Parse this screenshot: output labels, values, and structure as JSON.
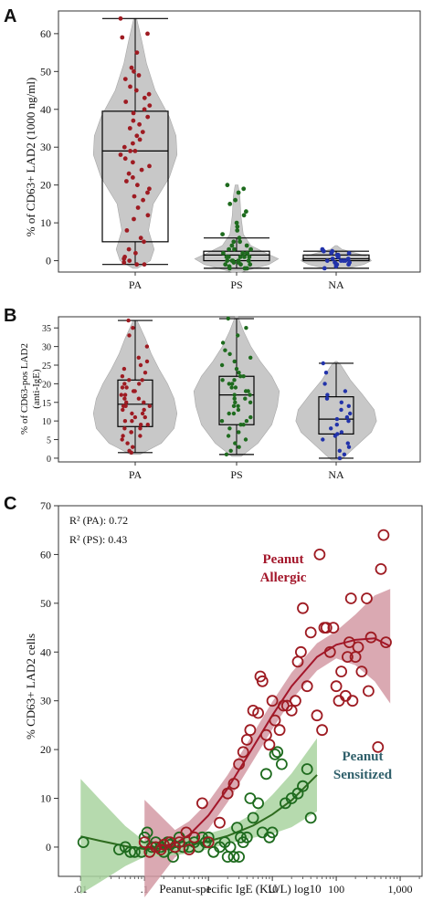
{
  "colors": {
    "violin_fill": "#c8c8c8",
    "box_stroke": "#000000",
    "pa": "#9e1b22",
    "ps": "#1e6b1e",
    "na": "#2233aa",
    "pa_fit": "#a3162a",
    "ps_fit": "#2e6b1e",
    "pa_band": "#d49aa5",
    "ps_band": "#a9d3a0",
    "ps_label": "#2f5f6a"
  },
  "chart_data": [
    {
      "panel": "A",
      "type": "violin",
      "ylabel": "% of CD63+ LAD2 (1000 ng/ml)",
      "yticks": [
        0,
        10,
        20,
        30,
        40,
        50,
        60
      ],
      "ylim": [
        -3,
        66
      ],
      "categories": [
        "PA",
        "PS",
        "NA"
      ],
      "boxes": [
        {
          "min": -1,
          "q1": 5,
          "median": 29,
          "q3": 39.5,
          "max": 64
        },
        {
          "min": -2,
          "q1": 0,
          "median": 1.5,
          "q3": 2.5,
          "max": 6
        },
        {
          "min": -2,
          "q1": 0,
          "median": 0.5,
          "q3": 1.5,
          "max": 2.5
        }
      ],
      "violin_widths": [
        [
          [
            -2,
            0.05
          ],
          [
            0,
            0.32
          ],
          [
            3,
            0.4
          ],
          [
            8,
            0.28
          ],
          [
            15,
            0.38
          ],
          [
            22,
            0.72
          ],
          [
            28,
            0.88
          ],
          [
            33,
            0.86
          ],
          [
            38,
            0.72
          ],
          [
            45,
            0.42
          ],
          [
            52,
            0.24
          ],
          [
            58,
            0.14
          ],
          [
            64,
            0.03
          ]
        ],
        [
          [
            -3,
            0.1
          ],
          [
            -1,
            0.68
          ],
          [
            0.5,
            0.88
          ],
          [
            2,
            0.62
          ],
          [
            4,
            0.3
          ],
          [
            7,
            0.14
          ],
          [
            12,
            0.09
          ],
          [
            17,
            0.07
          ],
          [
            20,
            0.03
          ]
        ],
        [
          [
            -2,
            0.24
          ],
          [
            -1,
            0.58
          ],
          [
            0,
            0.74
          ],
          [
            1,
            0.68
          ],
          [
            2,
            0.42
          ],
          [
            3,
            0.12
          ],
          [
            4,
            0.02
          ]
        ]
      ],
      "points": [
        [
          64,
          60,
          59,
          55,
          51,
          50,
          49,
          48,
          46,
          45,
          44,
          43,
          42,
          41,
          40,
          39,
          38,
          37,
          36,
          35,
          34,
          33,
          32,
          31,
          30,
          29,
          29,
          28,
          27,
          26,
          25,
          24,
          23,
          22,
          21,
          20,
          19,
          18,
          17,
          16,
          14,
          12,
          11,
          8,
          6,
          5,
          3,
          2,
          1,
          0.5,
          0,
          -0.5,
          -1,
          -1
        ],
        [
          20,
          19,
          18,
          16,
          15,
          13,
          12,
          10,
          9,
          8,
          7,
          6,
          5,
          5,
          4,
          4,
          3,
          3,
          3,
          2,
          2,
          2,
          2,
          1,
          1,
          1,
          1,
          1,
          0,
          0,
          0,
          0,
          0,
          -0.5,
          -0.5,
          -1,
          -1,
          -1,
          -1.5,
          -2,
          -2,
          -2
        ],
        [
          3,
          2.5,
          2.5,
          2,
          2,
          1.5,
          1.5,
          1,
          1,
          1,
          0.5,
          0.5,
          0,
          0,
          0,
          0,
          -0.5,
          -0.5,
          -1,
          -1,
          -1,
          -1.5,
          -2
        ]
      ]
    },
    {
      "panel": "B",
      "type": "violin",
      "ylabel": "% of CD63-pos LAD2 (anti-IgE)",
      "yticks": [
        0,
        5,
        10,
        15,
        20,
        25,
        30,
        35
      ],
      "ylim": [
        -1,
        38
      ],
      "categories": [
        "PA",
        "PS",
        "NA"
      ],
      "boxes": [
        {
          "min": 1.5,
          "q1": 8.5,
          "median": 14.5,
          "q3": 21,
          "max": 37
        },
        {
          "min": 1,
          "q1": 9,
          "median": 17,
          "q3": 22,
          "max": 37.5
        },
        {
          "min": 0,
          "q1": 6.5,
          "median": 10.5,
          "q3": 16.5,
          "max": 25.5
        }
      ],
      "violin_widths": [
        [
          [
            1,
            0.1
          ],
          [
            4,
            0.55
          ],
          [
            8,
            0.82
          ],
          [
            12,
            0.88
          ],
          [
            16,
            0.82
          ],
          [
            20,
            0.68
          ],
          [
            24,
            0.5
          ],
          [
            28,
            0.34
          ],
          [
            32,
            0.22
          ],
          [
            37,
            0.04
          ]
        ],
        [
          [
            0.5,
            0.1
          ],
          [
            4,
            0.45
          ],
          [
            9,
            0.74
          ],
          [
            14,
            0.86
          ],
          [
            18,
            0.9
          ],
          [
            22,
            0.74
          ],
          [
            26,
            0.5
          ],
          [
            30,
            0.3
          ],
          [
            34,
            0.15
          ],
          [
            38,
            0.03
          ]
        ],
        [
          [
            -0.5,
            0.1
          ],
          [
            3,
            0.4
          ],
          [
            7,
            0.74
          ],
          [
            10,
            0.85
          ],
          [
            13,
            0.8
          ],
          [
            17,
            0.56
          ],
          [
            21,
            0.3
          ],
          [
            25,
            0.1
          ],
          [
            26,
            0.02
          ]
        ]
      ],
      "points": [
        [
          37,
          35,
          33,
          30,
          27,
          26,
          25,
          24,
          23,
          22,
          21,
          21,
          20,
          20,
          19,
          19,
          18,
          18,
          17,
          17,
          16,
          16,
          15,
          15,
          14,
          14,
          14,
          13,
          13,
          12,
          12,
          11,
          11,
          10,
          10,
          9,
          9,
          8,
          8,
          7,
          7,
          6,
          6,
          5,
          4,
          3,
          2,
          1.5
        ],
        [
          37.5,
          35,
          33,
          31,
          29,
          28,
          27,
          26,
          25,
          24,
          23,
          22,
          22,
          21,
          21,
          20,
          20,
          19,
          19,
          18,
          18,
          17,
          17,
          16,
          16,
          15,
          15,
          14,
          14,
          13,
          12,
          12,
          11,
          10,
          10,
          9,
          9,
          8,
          7,
          6,
          5,
          4,
          3,
          2,
          1
        ],
        [
          25.5,
          23,
          20,
          18,
          17,
          16,
          15,
          14,
          13,
          12,
          11,
          10.5,
          10,
          9,
          8,
          7,
          6.5,
          6,
          5,
          4,
          3,
          2,
          1,
          0
        ]
      ]
    },
    {
      "panel": "C",
      "type": "scatter",
      "ylabel": "% CD63+ LAD2 cells",
      "xlabel": "Peanut-specific IgE (KU/L) log10",
      "xscale": "log",
      "xticks": [
        0.01,
        0.1,
        1,
        10,
        100,
        1000
      ],
      "xticklabels": [
        ".01",
        ".1",
        "1",
        "10",
        "100",
        "1,000"
      ],
      "xlim": [
        0.0045,
        2200
      ],
      "yticks": [
        0,
        10,
        20,
        30,
        40,
        50,
        60,
        70
      ],
      "ylim": [
        -6,
        70
      ],
      "r2": [
        "R² (PA): 0.72",
        "R² (PS): 0.43"
      ],
      "labels": {
        "pa": [
          "Peanut",
          "Allergic"
        ],
        "ps": [
          "Peanut",
          "Sensitized"
        ]
      },
      "series": [
        {
          "name": "PA",
          "points": [
            [
              0.1,
              1
            ],
            [
              0.12,
              -1
            ],
            [
              0.15,
              0
            ],
            [
              0.18,
              -0.5
            ],
            [
              0.2,
              0.5
            ],
            [
              0.25,
              1
            ],
            [
              0.3,
              0
            ],
            [
              0.35,
              1
            ],
            [
              0.45,
              3
            ],
            [
              0.5,
              -0.5
            ],
            [
              0.6,
              2
            ],
            [
              0.8,
              9
            ],
            [
              1.0,
              1
            ],
            [
              1.5,
              5
            ],
            [
              2,
              11
            ],
            [
              2.5,
              13
            ],
            [
              3,
              17
            ],
            [
              3.5,
              19.5
            ],
            [
              4,
              22
            ],
            [
              4.5,
              24
            ],
            [
              5,
              28
            ],
            [
              6,
              27.5
            ],
            [
              6.5,
              35
            ],
            [
              7,
              34
            ],
            [
              8,
              23
            ],
            [
              9,
              21
            ],
            [
              10,
              30
            ],
            [
              11,
              26
            ],
            [
              13,
              24
            ],
            [
              15,
              29
            ],
            [
              17,
              29
            ],
            [
              20,
              28
            ],
            [
              23,
              30
            ],
            [
              25,
              38
            ],
            [
              28,
              40
            ],
            [
              30,
              49
            ],
            [
              35,
              33
            ],
            [
              40,
              44
            ],
            [
              50,
              27
            ],
            [
              55,
              60
            ],
            [
              60,
              24
            ],
            [
              65,
              45
            ],
            [
              70,
              45
            ],
            [
              80,
              40
            ],
            [
              90,
              45
            ],
            [
              100,
              33
            ],
            [
              110,
              30
            ],
            [
              120,
              36
            ],
            [
              140,
              31
            ],
            [
              150,
              39
            ],
            [
              160,
              42
            ],
            [
              170,
              51
            ],
            [
              180,
              30
            ],
            [
              200,
              39
            ],
            [
              220,
              41
            ],
            [
              250,
              36
            ],
            [
              300,
              51
            ],
            [
              320,
              32
            ],
            [
              350,
              43
            ],
            [
              450,
              20.5
            ],
            [
              500,
              57
            ],
            [
              550,
              64
            ],
            [
              600,
              42
            ]
          ]
        },
        {
          "name": "PS",
          "points": [
            [
              0.011,
              1
            ],
            [
              0.04,
              -0.5
            ],
            [
              0.05,
              0
            ],
            [
              0.06,
              -1
            ],
            [
              0.07,
              -1
            ],
            [
              0.09,
              -1
            ],
            [
              0.1,
              2
            ],
            [
              0.11,
              3
            ],
            [
              0.13,
              0
            ],
            [
              0.15,
              1
            ],
            [
              0.18,
              0
            ],
            [
              0.2,
              -1
            ],
            [
              0.23,
              1
            ],
            [
              0.25,
              0.5
            ],
            [
              0.28,
              -2
            ],
            [
              0.3,
              0
            ],
            [
              0.35,
              2
            ],
            [
              0.4,
              0
            ],
            [
              0.5,
              0
            ],
            [
              0.6,
              1
            ],
            [
              0.7,
              0
            ],
            [
              0.8,
              2
            ],
            [
              0.9,
              1
            ],
            [
              1.0,
              2
            ],
            [
              1.2,
              -1
            ],
            [
              1.5,
              0
            ],
            [
              1.8,
              1
            ],
            [
              2,
              -2
            ],
            [
              2.2,
              0
            ],
            [
              2.5,
              -2
            ],
            [
              2.8,
              4
            ],
            [
              3,
              -2
            ],
            [
              3.2,
              2
            ],
            [
              3.5,
              1
            ],
            [
              4,
              2
            ],
            [
              4.5,
              10
            ],
            [
              5,
              6
            ],
            [
              6,
              9
            ],
            [
              7,
              3
            ],
            [
              8,
              15
            ],
            [
              9,
              2
            ],
            [
              10,
              3
            ],
            [
              11,
              19
            ],
            [
              12,
              19.5
            ],
            [
              14,
              17
            ],
            [
              16,
              9
            ],
            [
              20,
              10
            ],
            [
              25,
              11
            ],
            [
              30,
              12.5
            ],
            [
              35,
              16
            ],
            [
              40,
              6
            ]
          ]
        }
      ],
      "fits": [
        {
          "name": "PA",
          "curve": [
            [
              0.1,
              -0.3
            ],
            [
              0.3,
              0.7
            ],
            [
              0.5,
              2.5
            ],
            [
              1,
              6.5
            ],
            [
              2,
              12
            ],
            [
              5,
              20.5
            ],
            [
              10,
              27
            ],
            [
              20,
              33
            ],
            [
              50,
              39
            ],
            [
              100,
              41.5
            ],
            [
              200,
              42.5
            ],
            [
              400,
              42.8
            ],
            [
              700,
              41.2
            ]
          ]
        },
        {
          "name": "PS",
          "curve": [
            [
              0.01,
              2.2
            ],
            [
              0.02,
              1.3
            ],
            [
              0.05,
              0.2
            ],
            [
              0.1,
              -0.4
            ],
            [
              0.2,
              -0.3
            ],
            [
              0.5,
              0.3
            ],
            [
              1,
              1.2
            ],
            [
              2,
              2.3
            ],
            [
              5,
              4.4
            ],
            [
              10,
              6.7
            ],
            [
              20,
              9.6
            ],
            [
              50,
              14.8
            ]
          ]
        }
      ]
    }
  ],
  "panel_labels": {
    "a": "A",
    "b": "B",
    "c": "C"
  }
}
